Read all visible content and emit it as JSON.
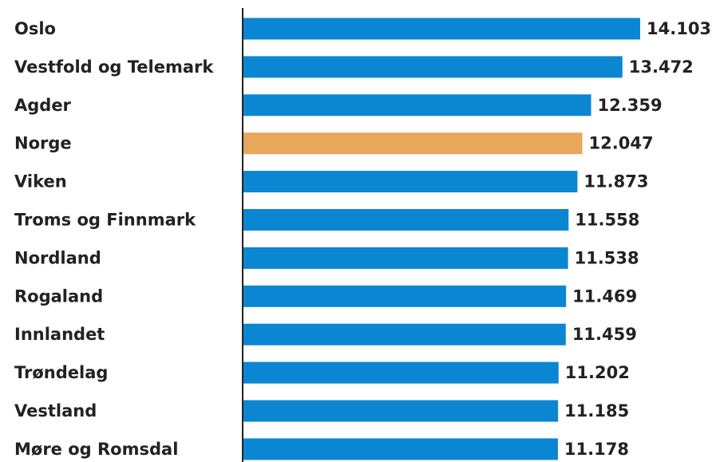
{
  "chart_data": {
    "type": "hbar",
    "categories": [
      "Oslo",
      "Vestfold og Telemark",
      "Agder",
      "Norge",
      "Viken",
      "Troms og Finnmark",
      "Nordland",
      "Rogaland",
      "Innlandet",
      "Trøndelag",
      "Vestland",
      "Møre og Romsdal"
    ],
    "values": [
      14103,
      13472,
      12359,
      12047,
      11873,
      11558,
      11538,
      11469,
      11459,
      11202,
      11185,
      11178
    ],
    "value_labels": [
      "14.103",
      "13.472",
      "12.359",
      "12.047",
      "11.873",
      "11.558",
      "11.538",
      "11.469",
      "11.459",
      "11.202",
      "11.185",
      "11.178"
    ],
    "colors": [
      "#0a86d2",
      "#0a86d2",
      "#0a86d2",
      "#e8a85c",
      "#0a86d2",
      "#0a86d2",
      "#0a86d2",
      "#0a86d2",
      "#0a86d2",
      "#0a86d2",
      "#0a86d2",
      "#0a86d2"
    ]
  }
}
